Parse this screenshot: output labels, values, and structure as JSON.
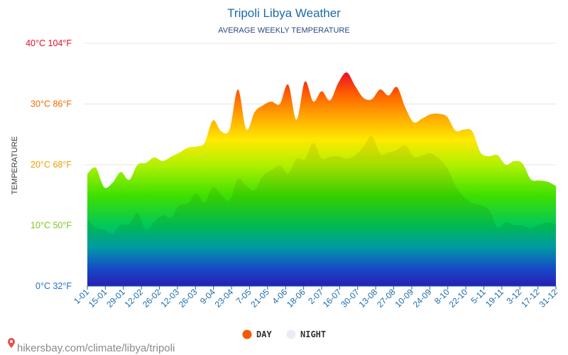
{
  "chart_data": {
    "type": "area",
    "title": "Tripoli Libya Weather",
    "subtitle": "AVERAGE WEEKLY TEMPERATURE",
    "ylabel": "TEMPERATURE",
    "ylim": [
      0,
      40
    ],
    "y_ticks": [
      {
        "value": 0,
        "label": "0°C 32°F",
        "color": "#1f6fd1"
      },
      {
        "value": 10,
        "label": "10°C 50°F",
        "color": "#7cc41c"
      },
      {
        "value": 20,
        "label": "20°C 68°F",
        "color": "#f0a000"
      },
      {
        "value": 30,
        "label": "30°C 86°F",
        "color": "#f26a00"
      },
      {
        "value": 40,
        "label": "40°C 104°F",
        "color": "#e0102a"
      }
    ],
    "x_ticks": [
      "1-01",
      "15-01",
      "29-01",
      "12-02",
      "26-02",
      "12-03",
      "26-03",
      "9-04",
      "23-04",
      "7-05",
      "21-05",
      "4-06",
      "18-06",
      "2-07",
      "16-07",
      "30-07",
      "13-08",
      "27-08",
      "10-09",
      "24-09",
      "8-10",
      "22-10",
      "5-11",
      "19-11",
      "3-12",
      "17-12",
      "31-12"
    ],
    "series": [
      {
        "name": "DAY",
        "color": "#f05a00",
        "values": [
          18.5,
          19.5,
          16.3,
          17.0,
          18.8,
          17.5,
          20.0,
          20.3,
          21.2,
          20.6,
          21.3,
          22.0,
          22.8,
          23.0,
          23.6,
          27.3,
          25.5,
          25.8,
          32.4,
          25.8,
          28.7,
          29.8,
          30.4,
          30.0,
          33.2,
          27.4,
          33.7,
          30.4,
          32.1,
          30.6,
          33.5,
          35.2,
          33.0,
          31.0,
          30.8,
          32.4,
          31.4,
          32.8,
          29.4,
          27.0,
          27.6,
          28.3,
          28.4,
          27.9,
          25.6,
          25.8,
          25.5,
          22.0,
          21.4,
          21.6,
          20.0,
          20.6,
          20.2,
          17.6,
          17.4,
          17.2,
          16.5
        ]
      },
      {
        "name": "NIGHT",
        "color": "#e8ecf4",
        "values": [
          11.0,
          9.6,
          9.3,
          8.7,
          10.1,
          10.2,
          12.1,
          9.3,
          10.6,
          11.7,
          11.3,
          13.3,
          13.6,
          15.3,
          13.8,
          16.3,
          15.0,
          14.2,
          17.7,
          16.5,
          15.8,
          18.2,
          19.1,
          19.9,
          18.6,
          21.0,
          20.9,
          23.6,
          21.0,
          21.3,
          21.4,
          21.0,
          21.5,
          23.0,
          24.7,
          21.8,
          22.0,
          22.4,
          23.2,
          21.3,
          21.5,
          21.9,
          21.0,
          19.5,
          16.5,
          14.7,
          13.7,
          13.3,
          12.6,
          9.7,
          10.5,
          10.1,
          10.0,
          9.6,
          10.1,
          10.5,
          10.2
        ]
      }
    ],
    "legend": {
      "position": "bottom"
    }
  },
  "watermark": {
    "text": "hikersbay.com/climate/libya/tripoli",
    "icon": "map-pin-icon"
  }
}
